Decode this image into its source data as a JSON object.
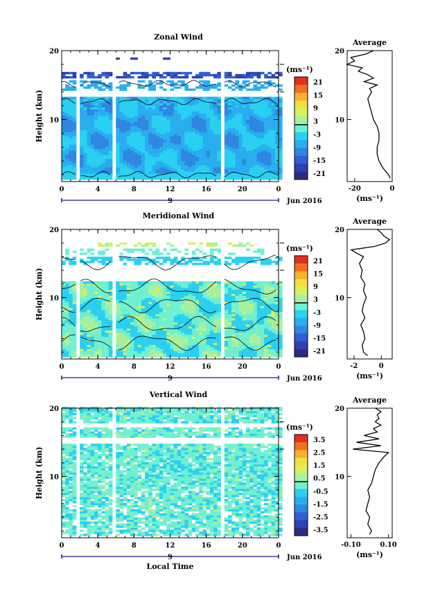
{
  "chart_data": [
    {
      "type": "heatmap",
      "title": "Zonal Wind",
      "ylabel": "Height (km)",
      "xlabel": "",
      "unit_label": "(ms⁻¹)",
      "date_label": "9",
      "month_label": "Jun 2016",
      "xlim": [
        0,
        24
      ],
      "ylim": [
        1,
        20
      ],
      "xticks": [
        "0",
        "4",
        "8",
        "12",
        "16",
        "20",
        "0"
      ],
      "yticks": [
        "10",
        "20"
      ],
      "colorbar_ticks": [
        "21",
        "15",
        "9",
        "3",
        "-3",
        "-9",
        "-15",
        "-21"
      ],
      "colorbar_range": [
        -24,
        24
      ],
      "data_gaps_hours": [
        [
          1.6,
          2.0
        ],
        [
          5.6,
          6.0
        ],
        [
          17.4,
          17.8
        ]
      ],
      "profile": {
        "title": "Average",
        "xlabel": "(ms⁻¹)",
        "xticks": [
          "-20",
          "0"
        ],
        "xlim": [
          -24,
          0
        ],
        "heights": [
          1.5,
          2,
          3,
          4,
          5,
          6,
          7,
          8,
          9,
          10,
          11,
          12,
          13,
          14,
          14.5,
          15,
          15.5,
          16,
          16.5,
          17,
          17.5,
          18,
          18.5,
          19,
          19.5,
          20
        ],
        "values": [
          -1,
          -2,
          -5,
          -7,
          -8,
          -8,
          -7,
          -7,
          -8,
          -10,
          -11,
          -12,
          -13,
          -11,
          -12,
          -8,
          -15,
          -10,
          -13,
          -18,
          -16,
          -24,
          -20,
          -22,
          -14,
          -10
        ]
      }
    },
    {
      "type": "heatmap",
      "title": "Meridional Wind",
      "ylabel": "Height (km)",
      "xlabel": "",
      "unit_label": "(ms⁻¹)",
      "date_label": "9",
      "month_label": "Jun 2016",
      "xlim": [
        0,
        24
      ],
      "ylim": [
        1,
        20
      ],
      "xticks": [
        "0",
        "4",
        "8",
        "12",
        "16",
        "20",
        "0"
      ],
      "yticks": [
        "10",
        "20"
      ],
      "colorbar_ticks": [
        "21",
        "15",
        "9",
        "3",
        "-3",
        "-9",
        "-15",
        "-21"
      ],
      "colorbar_range": [
        -24,
        24
      ],
      "data_gaps_hours": [
        [
          1.6,
          2.0
        ],
        [
          5.6,
          6.0
        ],
        [
          17.4,
          17.8
        ]
      ],
      "profile": {
        "title": "Average",
        "xlabel": "(ms⁻¹)",
        "xticks": [
          "-2",
          "0"
        ],
        "xlim": [
          -2.5,
          0.8
        ],
        "heights": [
          1.5,
          2,
          3,
          4,
          5,
          6,
          7,
          8,
          9,
          10,
          11,
          12,
          13,
          14,
          15,
          16,
          16.5,
          17,
          17.5,
          18,
          18.5,
          19,
          19.5,
          20
        ],
        "values": [
          -1.0,
          -1.3,
          -1.4,
          -1.2,
          -1.3,
          -1.5,
          -1.2,
          -1.4,
          -1.3,
          -1.1,
          -1.3,
          -1.2,
          -1.5,
          -1.4,
          -1.6,
          -1.3,
          -1.8,
          -2.2,
          -0.5,
          0.3,
          0.6,
          0.2,
          0.0,
          -0.3
        ]
      }
    },
    {
      "type": "heatmap",
      "title": "Vertical Wind",
      "ylabel": "Height (km)",
      "xlabel": "Local Time",
      "unit_label": "(ms⁻¹)",
      "date_label": "9",
      "month_label": "Jun 2016",
      "xlim": [
        0,
        24
      ],
      "ylim": [
        1,
        20
      ],
      "xticks": [
        "0",
        "4",
        "8",
        "12",
        "16",
        "20",
        "0"
      ],
      "yticks": [
        "10",
        "20"
      ],
      "colorbar_ticks": [
        "3.5",
        "2.5",
        "1.5",
        "0.5",
        "-0.5",
        "-1.5",
        "-2.5",
        "-3.5"
      ],
      "colorbar_range": [
        -4,
        4
      ],
      "data_gaps_hours": [
        [
          1.6,
          2.0
        ],
        [
          5.6,
          6.0
        ],
        [
          17.4,
          17.8
        ]
      ],
      "profile": {
        "title": "Average",
        "xlabel": "(ms⁻¹)",
        "xticks": [
          "-0.10",
          "0.10"
        ],
        "xlim": [
          -0.12,
          0.12
        ],
        "heights": [
          1.5,
          2,
          3,
          4,
          5,
          6,
          7,
          8,
          9,
          10,
          11,
          12,
          13,
          13.5,
          14,
          14.5,
          15,
          15.5,
          16,
          16.5,
          17,
          17.5,
          18,
          18.5,
          19,
          19.5,
          20
        ],
        "values": [
          0.0,
          0.01,
          -0.01,
          0.0,
          -0.02,
          -0.01,
          0.0,
          -0.01,
          0.01,
          0.02,
          0.03,
          0.05,
          0.08,
          0.1,
          -0.09,
          0.06,
          -0.07,
          0.05,
          -0.03,
          0.04,
          0.02,
          0.06,
          0.03,
          0.05,
          0.04,
          0.06,
          0.03
        ]
      }
    }
  ],
  "colors": {
    "scale": [
      "#2b2d80",
      "#3140b5",
      "#2f5fd8",
      "#2f87e0",
      "#29aef0",
      "#2bd0f0",
      "#6ff0d0",
      "#a8f0a0",
      "#d8f060",
      "#f0e040",
      "#f8b030",
      "#f07020",
      "#e03020"
    ]
  }
}
